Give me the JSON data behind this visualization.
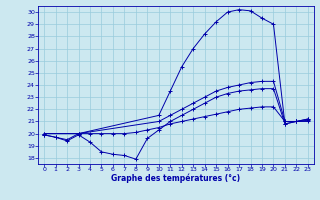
{
  "title": "Graphe des températures (°c)",
  "bg_color": "#cce8f0",
  "line_color": "#0000aa",
  "grid_color": "#99ccdd",
  "ylim": [
    17.5,
    30.5
  ],
  "xlim": [
    -0.5,
    23.5
  ],
  "yticks": [
    18,
    19,
    20,
    21,
    22,
    23,
    24,
    25,
    26,
    27,
    28,
    29,
    30
  ],
  "xticks": [
    0,
    1,
    2,
    3,
    4,
    5,
    6,
    7,
    8,
    9,
    10,
    11,
    12,
    13,
    14,
    15,
    16,
    17,
    18,
    19,
    20,
    21,
    22,
    23
  ],
  "series": [
    {
      "x": [
        0,
        3,
        10,
        11,
        12,
        13,
        14,
        15,
        16,
        17,
        18,
        19,
        20,
        21,
        22,
        23
      ],
      "y": [
        20.0,
        20.0,
        21.5,
        23.5,
        25.5,
        27.0,
        28.2,
        29.2,
        30.0,
        30.2,
        30.1,
        29.5,
        29.0,
        20.8,
        21.0,
        21.2
      ]
    },
    {
      "x": [
        0,
        3,
        10,
        11,
        12,
        13,
        14,
        15,
        16,
        17,
        18,
        19,
        20,
        21,
        22,
        23
      ],
      "y": [
        20.0,
        20.0,
        21.0,
        21.5,
        22.0,
        22.5,
        23.0,
        23.5,
        23.8,
        24.0,
        24.2,
        24.3,
        24.3,
        21.0,
        21.0,
        21.2
      ]
    },
    {
      "x": [
        0,
        1,
        2,
        3,
        4,
        5,
        6,
        7,
        8,
        9,
        10,
        11,
        12,
        13,
        14,
        15,
        16,
        17,
        18,
        19,
        20,
        21,
        22,
        23
      ],
      "y": [
        19.9,
        19.7,
        19.4,
        19.9,
        19.3,
        18.5,
        18.3,
        18.2,
        17.9,
        19.6,
        20.3,
        21.0,
        21.5,
        22.0,
        22.5,
        23.0,
        23.3,
        23.5,
        23.6,
        23.7,
        23.7,
        20.8,
        21.0,
        21.1
      ]
    },
    {
      "x": [
        0,
        1,
        2,
        3,
        4,
        5,
        6,
        7,
        8,
        9,
        10,
        11,
        12,
        13,
        14,
        15,
        16,
        17,
        18,
        19,
        20,
        21,
        22,
        23
      ],
      "y": [
        19.9,
        19.7,
        19.5,
        20.0,
        20.0,
        20.0,
        20.0,
        20.0,
        20.1,
        20.3,
        20.5,
        20.8,
        21.0,
        21.2,
        21.4,
        21.6,
        21.8,
        22.0,
        22.1,
        22.2,
        22.2,
        21.0,
        21.0,
        21.0
      ]
    }
  ]
}
